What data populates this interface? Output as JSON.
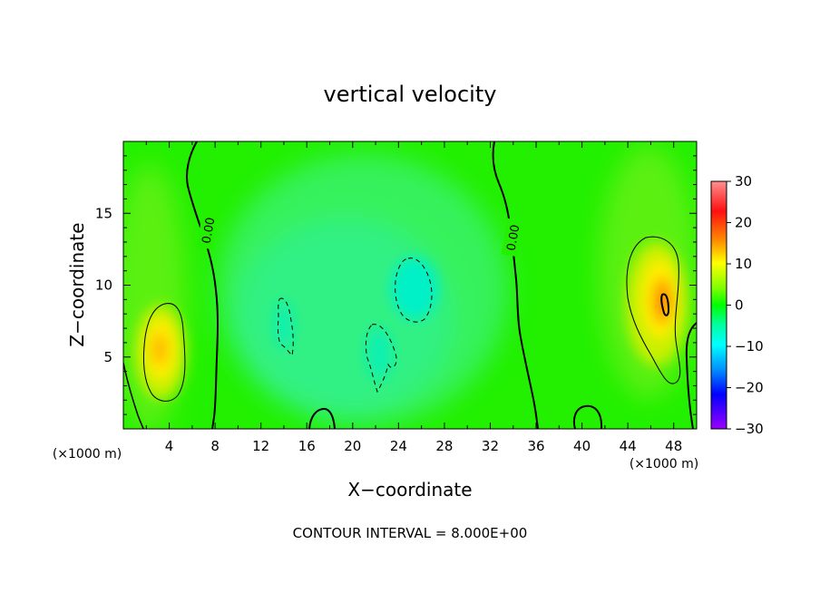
{
  "chart_data": {
    "type": "heatmap",
    "title": "vertical velocity",
    "xlabel": "X−coordinate",
    "ylabel": "Z−coordinate",
    "x_unit": "(×1000 m)",
    "y_unit": "(×1000 m)",
    "xlim": [
      0,
      50
    ],
    "ylim": [
      0,
      20
    ],
    "x_ticks": [
      "4",
      "8",
      "12",
      "16",
      "20",
      "24",
      "28",
      "32",
      "36",
      "40",
      "44",
      "48"
    ],
    "y_ticks": [
      "5",
      "10",
      "15"
    ],
    "colorbar": {
      "range": [
        -30,
        30
      ],
      "ticks": [
        "30",
        "20",
        "10",
        "0",
        "−10",
        "−20",
        "−30"
      ]
    },
    "contour_interval_text": "CONTOUR INTERVAL = 8.000E+00",
    "contour_labels": [
      "0.00",
      "0.00"
    ],
    "features": [
      {
        "kind": "updraft",
        "x": 3.5,
        "z": 5.5,
        "peak": 14
      },
      {
        "kind": "updraft",
        "x": 47.0,
        "z": 9.0,
        "peak": 17
      },
      {
        "kind": "downdraft",
        "x": 25.2,
        "z": 10.0,
        "peak": -9
      },
      {
        "kind": "downdraft",
        "x": 14.0,
        "z": 7.0,
        "peak": -7
      },
      {
        "kind": "downdraft",
        "x": 21.8,
        "z": 5.5,
        "peak": -7
      }
    ],
    "grid": false,
    "legend": "right"
  }
}
